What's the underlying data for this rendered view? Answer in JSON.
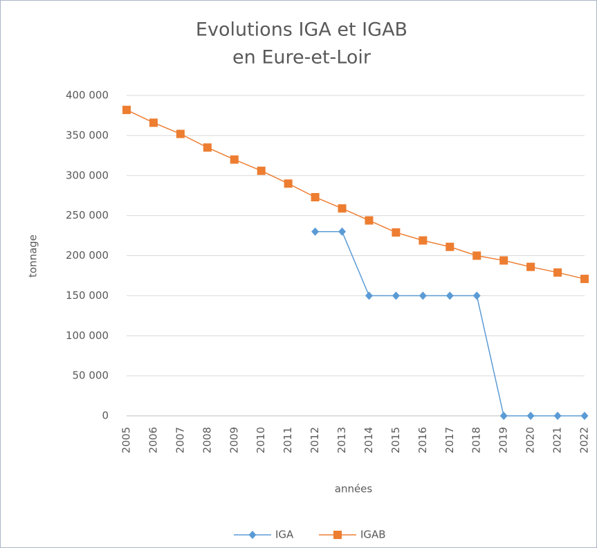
{
  "chart_data": {
    "type": "line",
    "title": [
      "Evolutions IGA et IGAB",
      "en Eure-et-Loir"
    ],
    "xlabel": "années",
    "ylabel": "tonnage",
    "categories": [
      "2005",
      "2006",
      "2007",
      "2008",
      "2009",
      "2010",
      "2011",
      "2012",
      "2013",
      "2014",
      "2015",
      "2016",
      "2017",
      "2018",
      "2019",
      "2020",
      "2021",
      "2022"
    ],
    "series": [
      {
        "name": "IGA",
        "color": "#5b9bd5",
        "marker": "diamond",
        "values": [
          null,
          null,
          null,
          null,
          null,
          null,
          null,
          230000,
          230000,
          150000,
          150000,
          150000,
          150000,
          150000,
          0,
          0,
          0,
          0
        ]
      },
      {
        "name": "IGAB",
        "color": "#ed7d31",
        "marker": "square",
        "values": [
          382000,
          366000,
          352000,
          335000,
          320000,
          306000,
          290000,
          273000,
          259000,
          244000,
          229000,
          219000,
          211000,
          200000,
          194000,
          186000,
          179000,
          171000
        ]
      }
    ],
    "ylim": [
      0,
      400000
    ],
    "yticks": [
      0,
      {
        "value": 50000,
        "label": "50 000"
      },
      {
        "value": 100000,
        "label": "100 000"
      },
      {
        "value": 150000,
        "label": "150 000"
      },
      {
        "value": 200000,
        "label": "200 000"
      },
      {
        "value": 250000,
        "label": "250 000"
      },
      {
        "value": 300000,
        "label": "300 000"
      },
      {
        "value": 350000,
        "label": "350 000"
      },
      {
        "value": 400000,
        "label": "400 000"
      }
    ],
    "grid": true,
    "legend": "bottom"
  }
}
